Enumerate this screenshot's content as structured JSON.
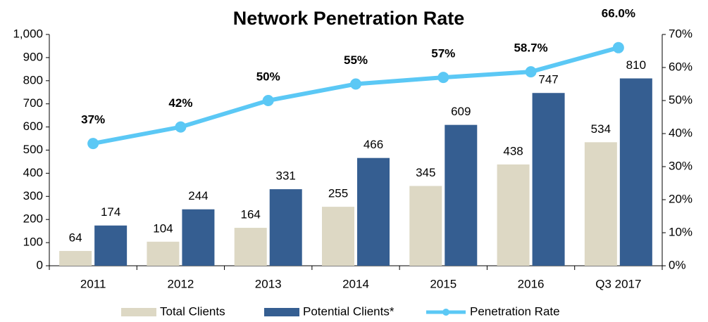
{
  "chart_data": {
    "type": "bar",
    "title": "Network Penetration Rate",
    "categories": [
      "2011",
      "2012",
      "2013",
      "2014",
      "2015",
      "2016",
      "Q3 2017"
    ],
    "series": [
      {
        "name": "Total Clients",
        "color": "#ddd8c4",
        "values": [
          64,
          104,
          164,
          255,
          345,
          438,
          534
        ]
      },
      {
        "name": "Potential Clients*",
        "color": "#355e91",
        "values": [
          174,
          244,
          331,
          466,
          609,
          747,
          810
        ]
      },
      {
        "name": "Penetration Rate",
        "color": "#5bc8f5",
        "type": "line",
        "axis": "y2",
        "values": [
          37,
          42,
          50,
          55,
          57,
          58.7,
          66
        ],
        "value_labels": [
          "37%",
          "42%",
          "50%",
          "55%",
          "57%",
          "58.7%",
          "66.0%"
        ]
      }
    ],
    "ylim": [
      0,
      1000
    ],
    "yticks": [
      0,
      100,
      200,
      300,
      400,
      500,
      600,
      700,
      800,
      900,
      {
        "value": 1000,
        "label": "1,000"
      }
    ],
    "y2lim": [
      0,
      70
    ],
    "y2ticks": [
      {
        "value": 0,
        "label": "0%"
      },
      {
        "value": 10,
        "label": "10%"
      },
      {
        "value": 20,
        "label": "20%"
      },
      {
        "value": 30,
        "label": "30%"
      },
      {
        "value": 40,
        "label": "40%"
      },
      {
        "value": 50,
        "label": "50%"
      },
      {
        "value": 60,
        "label": "60%"
      },
      {
        "value": 70,
        "label": "70%"
      }
    ],
    "legend": "bottom"
  }
}
